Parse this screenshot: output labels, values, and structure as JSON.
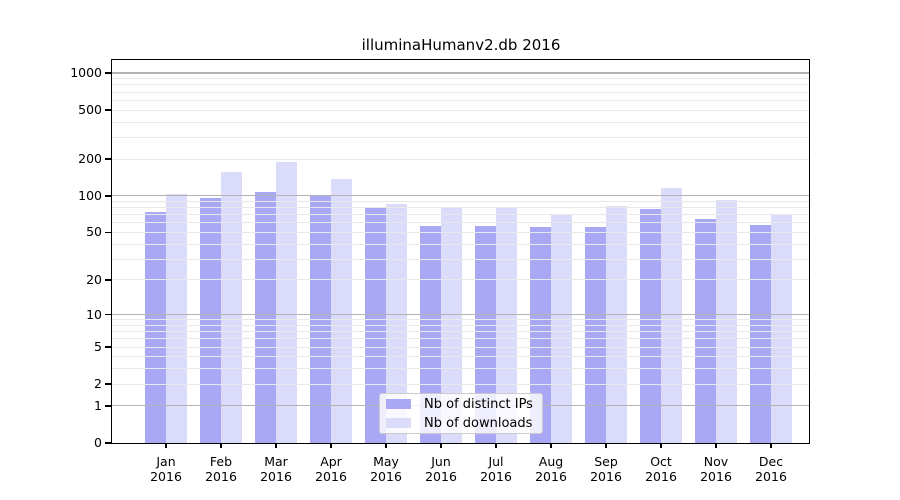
{
  "chart_data": {
    "type": "bar",
    "title": "illuminaHumanv2.db 2016",
    "categories": [
      "Jan",
      "Feb",
      "Mar",
      "Apr",
      "May",
      "Jun",
      "Jul",
      "Aug",
      "Sep",
      "Oct",
      "Nov",
      "Dec"
    ],
    "x_year_label": "2016",
    "series": [
      {
        "name": "Nb of distinct IPs",
        "color": "#a8a8f5",
        "values": [
          74,
          96,
          107,
          102,
          79,
          57,
          57,
          56,
          55,
          78,
          64,
          58
        ]
      },
      {
        "name": "Nb of downloads",
        "color": "#dbdbfa",
        "values": [
          103,
          156,
          190,
          138,
          86,
          81,
          79,
          70,
          83,
          115,
          92,
          71
        ]
      }
    ],
    "xlabel": "",
    "ylabel": "",
    "y_ticks": [
      1000,
      500,
      200,
      100,
      50,
      20,
      10,
      5,
      2,
      1,
      0
    ],
    "y_scale": "log10(value+1)",
    "ylim": [
      0,
      1275
    ],
    "grid": {
      "enabled": true,
      "minor_color": "#e8e8e8",
      "major_color": "#b3b3b3",
      "major_values": [
        1,
        10,
        100,
        1000
      ],
      "minor_bases": [
        1,
        10,
        100
      ],
      "minor_multiples": [
        2,
        3,
        4,
        5,
        6,
        7,
        8,
        9
      ]
    },
    "legend_position": "lower center",
    "frame_color": "#000000",
    "background_color": "#ffffff"
  }
}
